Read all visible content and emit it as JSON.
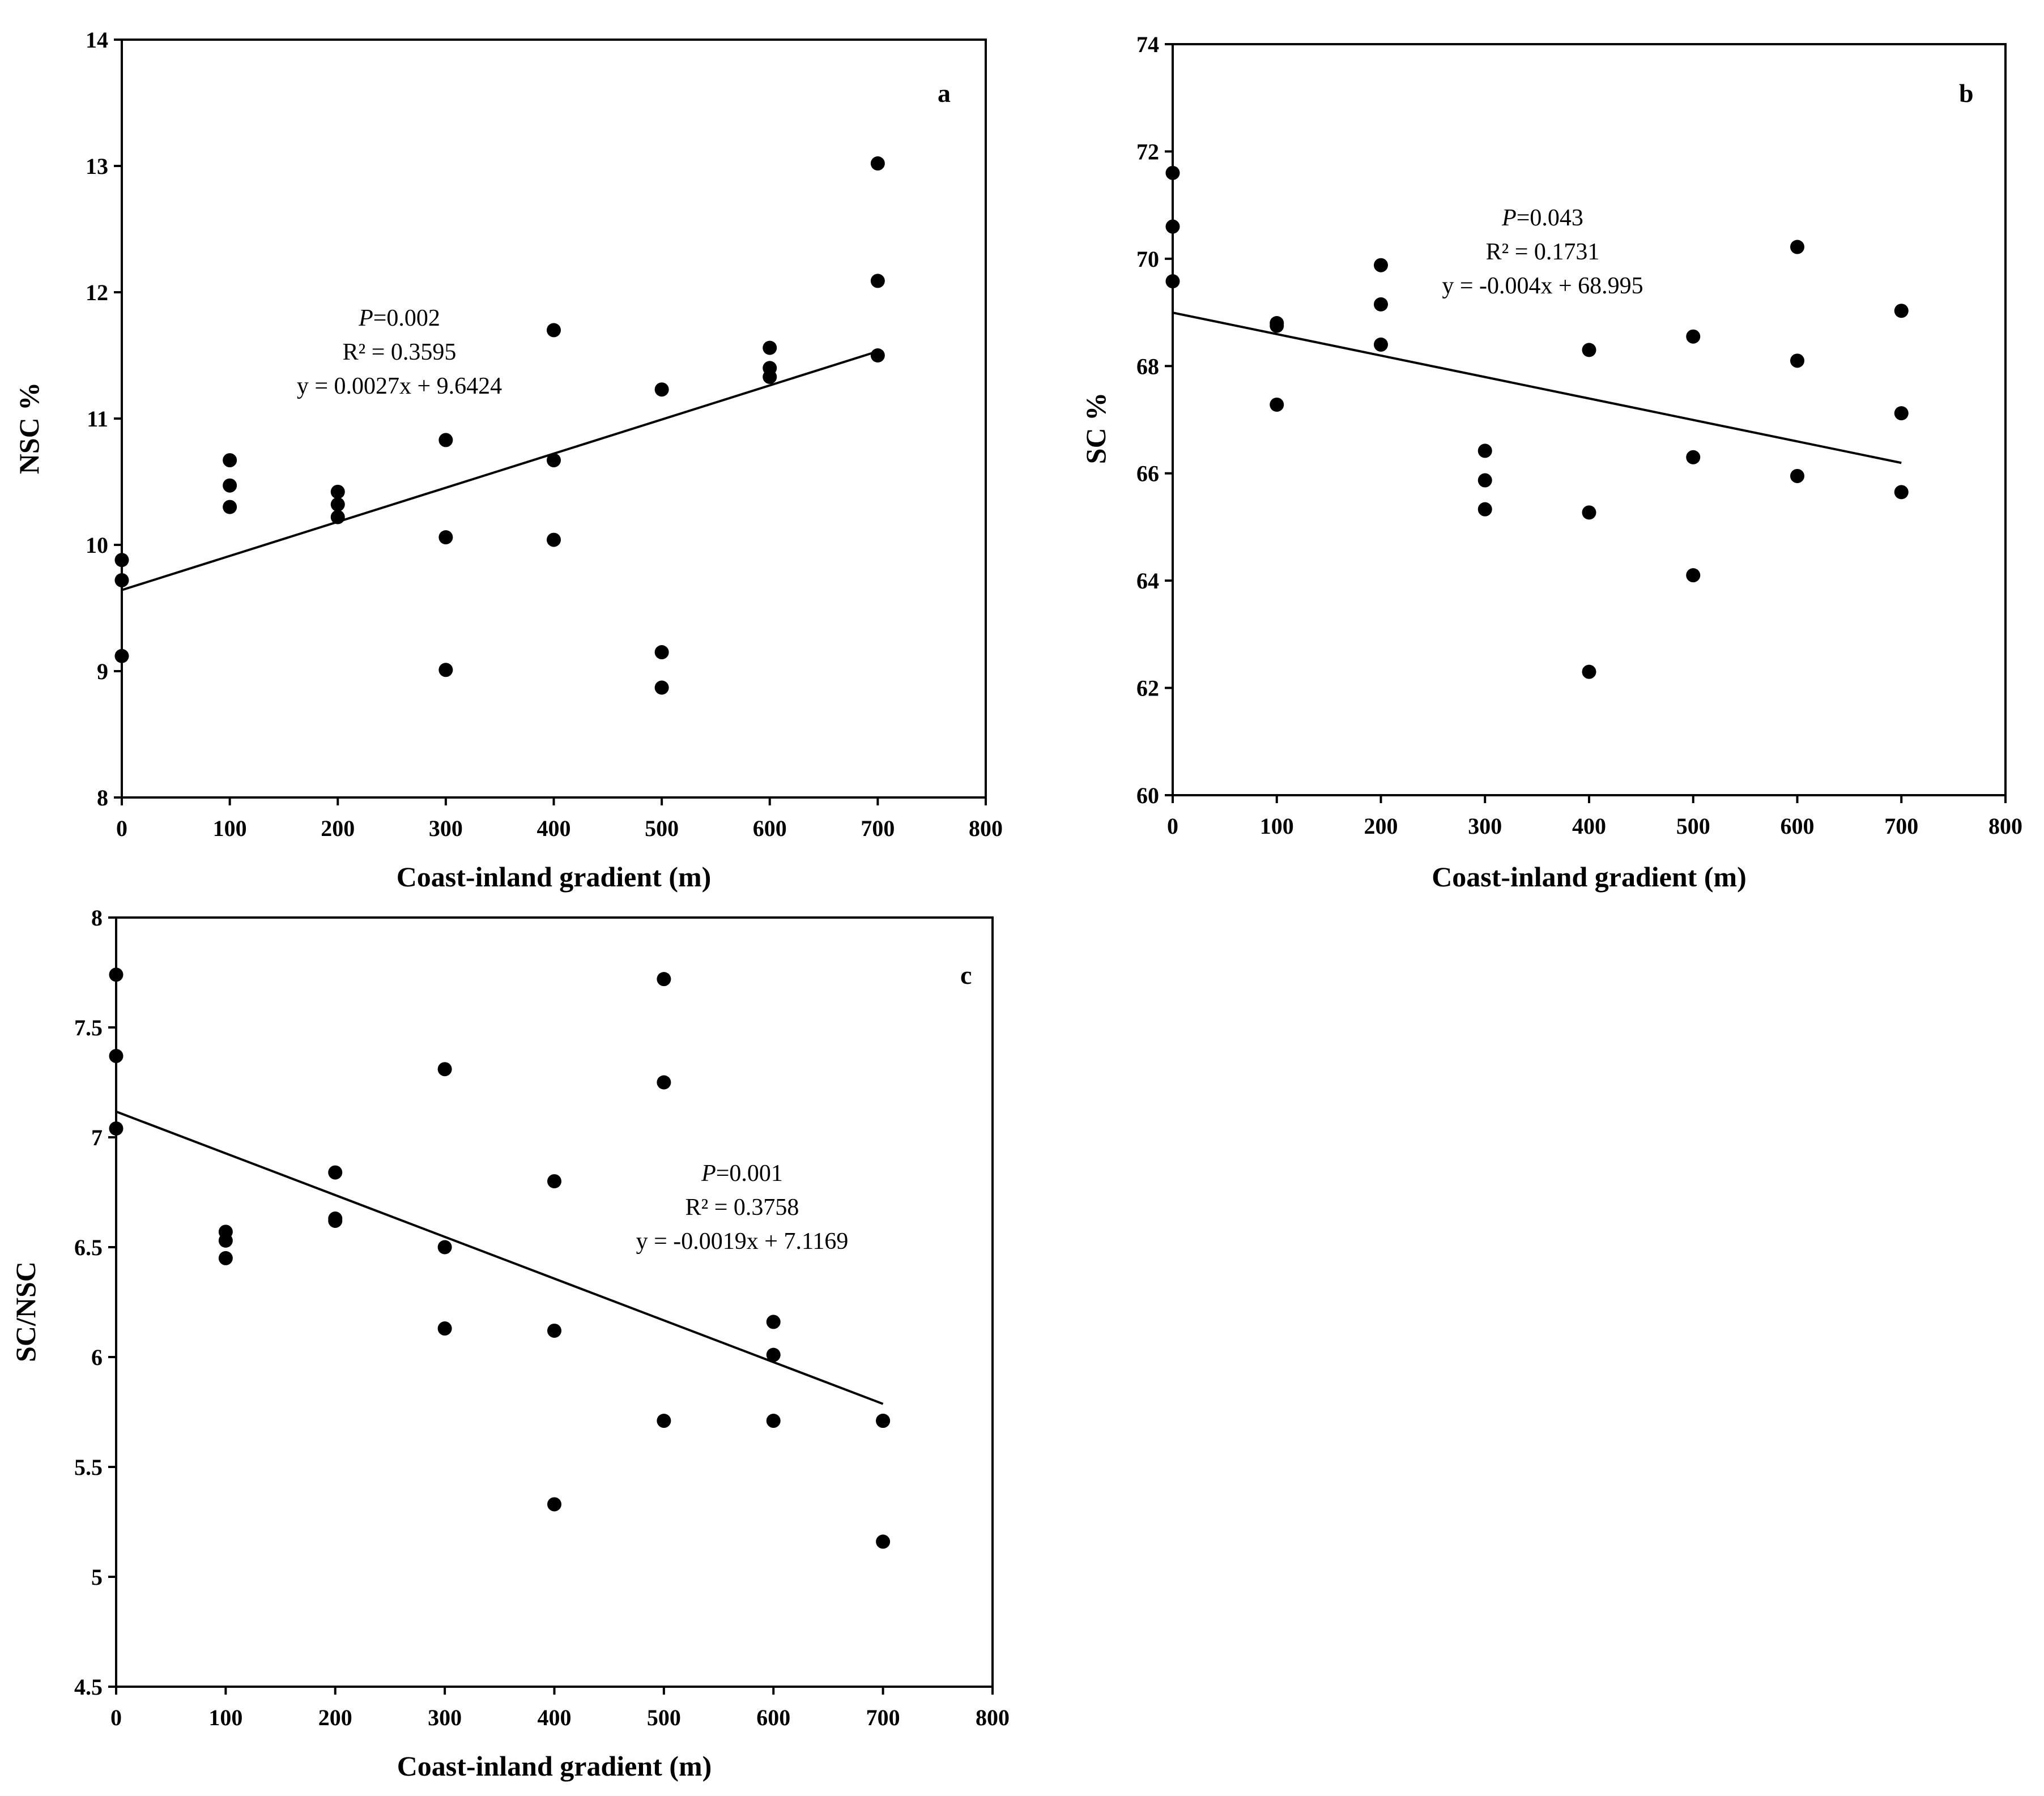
{
  "figure": {
    "colors": {
      "ink": "#000000",
      "background": "#ffffff"
    }
  },
  "chart_data": [
    {
      "type": "scatter",
      "panel": "a",
      "xlabel": "Coast-inland gradient (m)",
      "ylabel": "NSC %",
      "xlim": [
        0,
        800
      ],
      "ylim": [
        8,
        14
      ],
      "xticks": [
        0,
        100,
        200,
        300,
        400,
        500,
        600,
        700,
        800
      ],
      "yticks": [
        8,
        9,
        10,
        11,
        12,
        13,
        14
      ],
      "points": [
        [
          0,
          9.88
        ],
        [
          0,
          9.72
        ],
        [
          0,
          9.12
        ],
        [
          100,
          10.67
        ],
        [
          100,
          10.47
        ],
        [
          100,
          10.3
        ],
        [
          200,
          10.42
        ],
        [
          200,
          10.32
        ],
        [
          200,
          10.22
        ],
        [
          300,
          10.83
        ],
        [
          300,
          10.06
        ],
        [
          300,
          9.01
        ],
        [
          400,
          11.7
        ],
        [
          400,
          10.67
        ],
        [
          400,
          10.04
        ],
        [
          500,
          11.23
        ],
        [
          500,
          9.15
        ],
        [
          500,
          8.87
        ],
        [
          600,
          11.56
        ],
        [
          600,
          11.4
        ],
        [
          600,
          11.33
        ],
        [
          700,
          13.02
        ],
        [
          700,
          12.09
        ],
        [
          700,
          11.5
        ]
      ],
      "trendline": {
        "slope": 0.0027,
        "intercept": 9.6424,
        "x_range": [
          0,
          700
        ]
      },
      "annotation": {
        "p_label": "P",
        "p_value": "=0.002",
        "r2": "R² = 0.3595",
        "equation": "y = 0.0027x + 9.6424"
      }
    },
    {
      "type": "scatter",
      "panel": "b",
      "xlabel": "Coast-inland gradient (m)",
      "ylabel": "SC %",
      "xlim": [
        0,
        800
      ],
      "ylim": [
        60,
        74
      ],
      "xticks": [
        0,
        100,
        200,
        300,
        400,
        500,
        600,
        700,
        800
      ],
      "yticks": [
        60,
        62,
        64,
        66,
        68,
        70,
        72,
        74
      ],
      "points": [
        [
          0,
          71.6
        ],
        [
          0,
          70.6
        ],
        [
          0,
          69.58
        ],
        [
          100,
          68.8
        ],
        [
          100,
          68.75
        ],
        [
          100,
          67.28
        ],
        [
          200,
          69.88
        ],
        [
          200,
          69.15
        ],
        [
          200,
          68.4
        ],
        [
          300,
          66.42
        ],
        [
          300,
          65.87
        ],
        [
          300,
          65.33
        ],
        [
          400,
          68.3
        ],
        [
          400,
          65.27
        ],
        [
          400,
          62.3
        ],
        [
          500,
          68.55
        ],
        [
          500,
          66.3
        ],
        [
          500,
          64.1
        ],
        [
          600,
          70.22
        ],
        [
          600,
          68.1
        ],
        [
          600,
          65.95
        ],
        [
          700,
          69.03
        ],
        [
          700,
          67.12
        ],
        [
          700,
          65.65
        ]
      ],
      "trendline": {
        "slope": -0.004,
        "intercept": 68.995,
        "x_range": [
          0,
          700
        ]
      },
      "annotation": {
        "p_label": "P",
        "p_value": "=0.043",
        "r2": "R² = 0.1731",
        "equation": "y = -0.004x + 68.995"
      }
    },
    {
      "type": "scatter",
      "panel": "c",
      "xlabel": "Coast-inland gradient (m)",
      "ylabel": "SC/NSC",
      "xlim": [
        0,
        800
      ],
      "ylim": [
        4.5,
        8
      ],
      "xticks": [
        0,
        100,
        200,
        300,
        400,
        500,
        600,
        700,
        800
      ],
      "yticks": [
        4.5,
        5,
        5.5,
        6,
        6.5,
        7,
        7.5,
        8
      ],
      "points": [
        [
          0,
          7.74
        ],
        [
          0,
          7.37
        ],
        [
          0,
          7.04
        ],
        [
          100,
          6.57
        ],
        [
          100,
          6.53
        ],
        [
          100,
          6.45
        ],
        [
          200,
          6.84
        ],
        [
          200,
          6.63
        ],
        [
          200,
          6.62
        ],
        [
          300,
          7.31
        ],
        [
          300,
          6.5
        ],
        [
          300,
          6.13
        ],
        [
          400,
          6.8
        ],
        [
          400,
          6.12
        ],
        [
          400,
          5.33
        ],
        [
          500,
          7.72
        ],
        [
          500,
          7.25
        ],
        [
          500,
          5.71
        ],
        [
          600,
          6.16
        ],
        [
          600,
          6.01
        ],
        [
          600,
          5.71
        ],
        [
          700,
          5.71
        ],
        [
          700,
          5.71
        ],
        [
          700,
          5.16
        ]
      ],
      "trendline": {
        "slope": -0.0019,
        "intercept": 7.1169,
        "x_range": [
          0,
          700
        ]
      },
      "annotation": {
        "p_label": "P",
        "p_value": "=0.001",
        "r2": "R² = 0.3758",
        "equation": "y = -0.0019x + 7.1169"
      }
    }
  ]
}
